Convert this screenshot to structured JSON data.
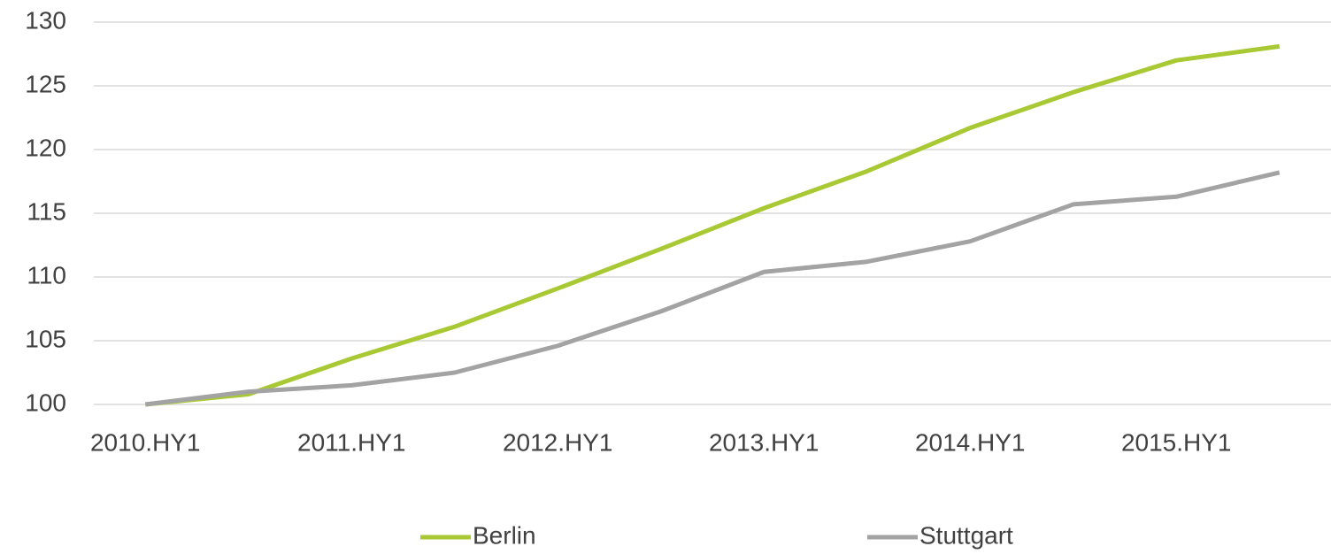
{
  "chart_data": {
    "type": "line",
    "categories": [
      "2010.HY1",
      null,
      "2011.HY1",
      null,
      "2012.HY1",
      null,
      "2013.HY1",
      null,
      "2014.HY1",
      null,
      "2015.HY1",
      null
    ],
    "series": [
      {
        "name": "Berlin",
        "color": "#a8c933",
        "values": [
          100,
          100.8,
          103.6,
          106.1,
          109.1,
          112.2,
          115.4,
          118.3,
          121.7,
          124.5,
          127.0,
          128.1
        ]
      },
      {
        "name": "Stuttgart",
        "color": "#a3a3a3",
        "values": [
          100,
          101.0,
          101.5,
          102.5,
          104.6,
          107.3,
          110.4,
          111.2,
          112.8,
          115.7,
          116.3,
          118.2
        ]
      }
    ],
    "ylim": [
      100,
      130
    ],
    "yticks": [
      100,
      105,
      110,
      115,
      120,
      125,
      130
    ],
    "grid": true,
    "legend": "bottom"
  }
}
